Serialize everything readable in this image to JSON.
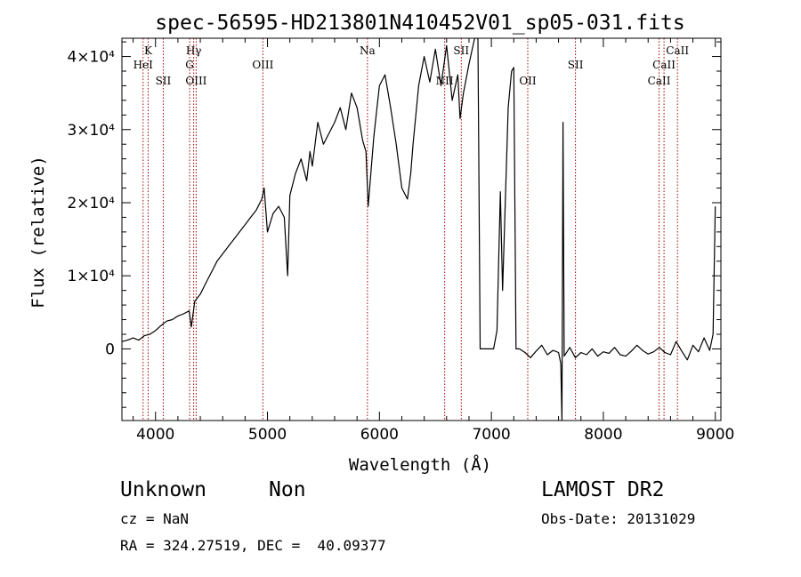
{
  "chart_data": {
    "type": "line",
    "title": "spec-56595-HD213801N410452V01_sp05-031.fits",
    "xlabel": "Wavelength (Å)",
    "ylabel": "Flux (relative)",
    "xlim": [
      3700,
      9050
    ],
    "ylim": [
      -9800,
      42500
    ],
    "x_ticks": [
      {
        "value": 4000,
        "label": "4000"
      },
      {
        "value": 5000,
        "label": "5000"
      },
      {
        "value": 6000,
        "label": "6000"
      },
      {
        "value": 7000,
        "label": "7000"
      },
      {
        "value": 8000,
        "label": "8000"
      },
      {
        "value": 9000,
        "label": "9000"
      }
    ],
    "y_ticks": [
      {
        "value": 0,
        "label": "0"
      },
      {
        "value": 10000,
        "label": "1×10⁴"
      },
      {
        "value": 20000,
        "label": "2×10⁴"
      },
      {
        "value": 30000,
        "label": "3×10⁴"
      },
      {
        "value": 40000,
        "label": "4×10⁴"
      }
    ],
    "grid": false,
    "spectral_lines": [
      {
        "label": "K",
        "wavelength": 3934,
        "row": 0
      },
      {
        "label": "HeI",
        "wavelength": 3889,
        "row": 1
      },
      {
        "label": "SII",
        "wavelength": 4069,
        "row": 2
      },
      {
        "label": "Hγ",
        "wavelength": 4341,
        "row": 0
      },
      {
        "label": "G",
        "wavelength": 4305,
        "row": 1
      },
      {
        "label": "OIII",
        "wavelength": 4363,
        "row": 2
      },
      {
        "label": "OIII",
        "wavelength": 4959,
        "row": 1
      },
      {
        "label": "Na",
        "wavelength": 5893,
        "row": 0
      },
      {
        "label": "NII",
        "wavelength": 6583,
        "row": 2
      },
      {
        "label": "SII",
        "wavelength": 6731,
        "row": 0
      },
      {
        "label": "OII",
        "wavelength": 7325,
        "row": 2
      },
      {
        "label": "SII",
        "wavelength": 7751,
        "row": 1
      },
      {
        "label": "CaII",
        "wavelength": 8662,
        "row": 0
      },
      {
        "label": "CaII",
        "wavelength": 8542,
        "row": 1
      },
      {
        "label": "CaII",
        "wavelength": 8498,
        "row": 2
      }
    ],
    "series": [
      {
        "x": [
          3700,
          3750,
          3800,
          3850,
          3900,
          3950,
          4000,
          4050,
          4100,
          4150,
          4200,
          4250,
          4300,
          4320,
          4350,
          4400,
          4450,
          4500,
          4550,
          4600,
          4650,
          4700,
          4750,
          4800,
          4850,
          4900,
          4950,
          4970,
          5000,
          5050,
          5100,
          5150,
          5180,
          5200,
          5250,
          5300,
          5350,
          5380,
          5400,
          5450,
          5500,
          5550,
          5600,
          5650,
          5700,
          5750,
          5800,
          5850,
          5880,
          5900,
          5950,
          6000,
          6050,
          6100,
          6150,
          6200,
          6250,
          6280,
          6300,
          6350,
          6400,
          6450,
          6500,
          6550,
          6600,
          6650,
          6700,
          6720,
          6750,
          6800,
          6850,
          6880,
          6900,
          6950,
          7000,
          7020,
          7050,
          7080,
          7100,
          7150,
          7180,
          7200,
          7220,
          7250,
          7300,
          7350,
          7400,
          7450,
          7500,
          7550,
          7600,
          7620,
          7630,
          7640,
          7650,
          7700,
          7750,
          7800,
          7850,
          7900,
          7950,
          8000,
          8050,
          8100,
          8150,
          8200,
          8250,
          8300,
          8350,
          8400,
          8450,
          8500,
          8550,
          8600,
          8650,
          8700,
          8750,
          8800,
          8850,
          8900,
          8950,
          8980,
          9000
        ],
        "y": [
          1000,
          1200,
          1500,
          1200,
          1800,
          2000,
          2500,
          3200,
          3800,
          4000,
          4500,
          4800,
          5200,
          3000,
          6500,
          7500,
          9000,
          10500,
          12000,
          13000,
          14000,
          15000,
          16000,
          17000,
          18000,
          19000,
          20500,
          22000,
          16000,
          18500,
          19500,
          18000,
          10000,
          21000,
          24000,
          26000,
          23000,
          27000,
          25000,
          31000,
          28000,
          29500,
          31000,
          33000,
          30000,
          35000,
          33000,
          28500,
          27000,
          19500,
          29000,
          36000,
          37500,
          33000,
          28000,
          22000,
          20500,
          24000,
          28000,
          36000,
          40000,
          36500,
          41000,
          36000,
          41500,
          34000,
          37500,
          31500,
          35000,
          39000,
          42500,
          42500,
          0,
          0,
          0,
          0,
          2500,
          21500,
          8000,
          33000,
          38000,
          38500,
          0,
          0,
          -500,
          -1200,
          -300,
          500,
          -800,
          -200,
          -500,
          -2000,
          -9800,
          31000,
          -1000,
          200,
          -1200,
          -500,
          -800,
          0,
          -1000,
          -400,
          -600,
          200,
          -800,
          -1000,
          -300,
          500,
          -200,
          -700,
          -400,
          200,
          -500,
          -800,
          1000,
          -300,
          -1500,
          500,
          -400,
          1500,
          -200,
          2000,
          19500
        ]
      }
    ]
  },
  "info": {
    "class_label": "Unknown",
    "subclass_label": "Non",
    "cz_text": "cz = NaN",
    "coords_text": "RA = 324.27519, DEC =  40.09377",
    "survey_label": "LAMOST DR2",
    "obs_date_text": "Obs-Date: 20131029"
  }
}
